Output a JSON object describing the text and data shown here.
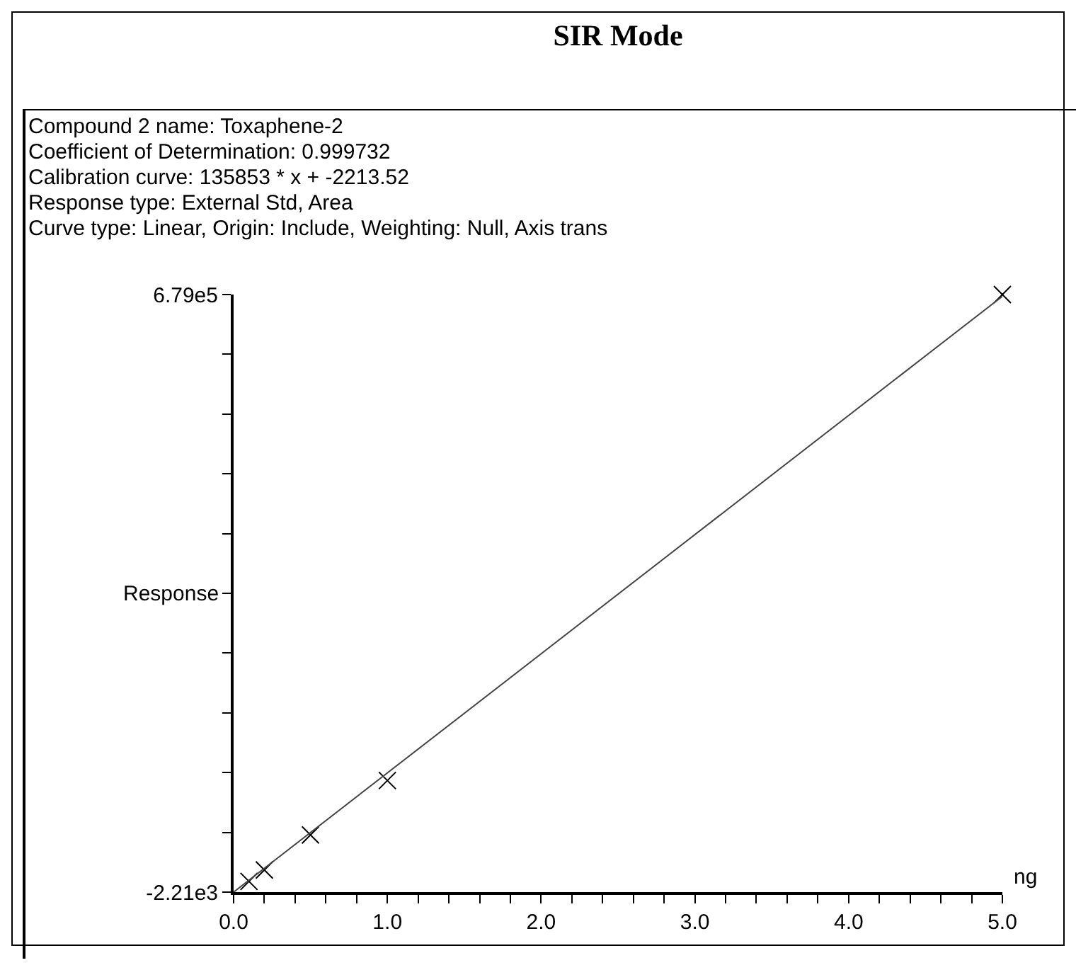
{
  "chart_data": {
    "type": "scatter",
    "title": "SIR Mode",
    "annotations": [
      "Compound 2 name: Toxaphene-2",
      "Coefficient of Determination: 0.999732",
      "Calibration curve: 135853 * x + -2213.52",
      "Response type: External Std, Area",
      "Curve type: Linear, Origin: Include, Weighting: Null, Axis trans"
    ],
    "xlabel": "ng",
    "ylabel": "Response",
    "x": [
      0.1,
      0.2,
      0.5,
      1.0,
      5.0
    ],
    "series": [
      {
        "color": "#000000",
        "values": [
          10000,
          23000,
          63000,
          125000,
          679000
        ],
        "marker": "cross"
      },
      {
        "type": "line",
        "color": "#444444",
        "x": [
          0,
          5
        ],
        "values": [
          -2210,
          677000
        ],
        "marker": "none",
        "line_style": "solid"
      }
    ],
    "xlim": [
      0,
      5
    ],
    "ylim": [
      -2210,
      679000
    ],
    "xticks": [
      {
        "value": 0,
        "label": "0.0"
      },
      {
        "value": 0.2,
        "label": null
      },
      {
        "value": 0.4,
        "label": null
      },
      {
        "value": 0.6,
        "label": null
      },
      {
        "value": 0.8,
        "label": null
      },
      {
        "value": 1,
        "label": "1.0"
      },
      {
        "value": 1.2,
        "label": null
      },
      {
        "value": 1.4,
        "label": null
      },
      {
        "value": 1.6,
        "label": null
      },
      {
        "value": 1.8,
        "label": null
      },
      {
        "value": 2,
        "label": "2.0"
      },
      {
        "value": 2.2,
        "label": null
      },
      {
        "value": 2.4,
        "label": null
      },
      {
        "value": 2.6,
        "label": null
      },
      {
        "value": 2.8,
        "label": null
      },
      {
        "value": 3,
        "label": "3.0"
      },
      {
        "value": 3.2,
        "label": null
      },
      {
        "value": 3.4,
        "label": null
      },
      {
        "value": 3.6,
        "label": null
      },
      {
        "value": 3.8,
        "label": null
      },
      {
        "value": 4,
        "label": "4.0"
      },
      {
        "value": 4.2,
        "label": null
      },
      {
        "value": 4.4,
        "label": null
      },
      {
        "value": 4.6,
        "label": null
      },
      {
        "value": 4.8,
        "label": null
      },
      {
        "value": 5,
        "label": "5.0"
      }
    ],
    "yticks": [
      {
        "value": -2210,
        "label": "-2.21e3"
      },
      {
        "value": 65911,
        "label": null
      },
      {
        "value": 134032,
        "label": null
      },
      {
        "value": 202153,
        "label": null
      },
      {
        "value": 270274,
        "label": null
      },
      {
        "value": 338395,
        "label": null
      },
      {
        "value": 406516,
        "label": null
      },
      {
        "value": 474637,
        "label": null
      },
      {
        "value": 542758,
        "label": null
      },
      {
        "value": 610879,
        "label": null
      },
      {
        "value": 679000,
        "label": "6.79e5"
      }
    ],
    "grid": false
  }
}
